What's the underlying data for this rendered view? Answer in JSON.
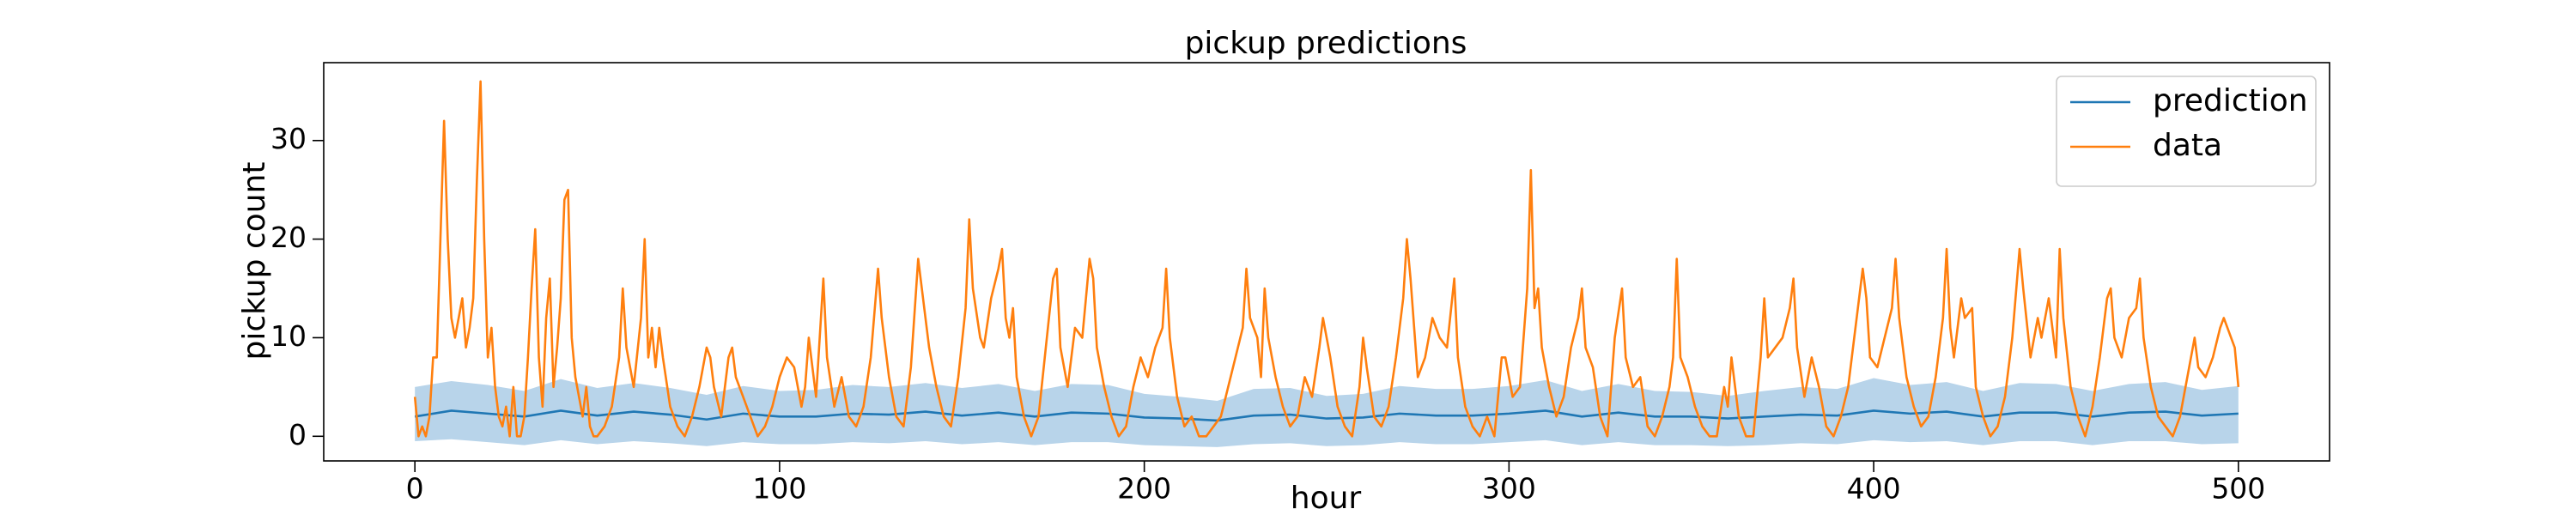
{
  "chart_data": {
    "type": "line",
    "title": "pickup predictions",
    "xlabel": "hour",
    "ylabel": "pickup count",
    "xlim": [
      -25,
      525
    ],
    "ylim": [
      -2.5,
      37.9
    ],
    "xticks": [
      0,
      100,
      200,
      300,
      400,
      500
    ],
    "yticks": [
      0,
      10,
      20,
      30
    ],
    "legend": "upper right",
    "band": {
      "color": "#b8d4ea",
      "x": [
        0,
        10,
        20,
        30,
        40,
        50,
        60,
        70,
        80,
        90,
        100,
        110,
        120,
        130,
        140,
        150,
        160,
        170,
        180,
        190,
        200,
        210,
        220,
        230,
        240,
        250,
        260,
        270,
        280,
        290,
        300,
        310,
        320,
        330,
        340,
        350,
        360,
        370,
        380,
        390,
        400,
        410,
        420,
        430,
        440,
        450,
        460,
        470,
        480,
        490,
        500
      ],
      "lower": [
        -0.5,
        -0.3,
        -0.6,
        -0.9,
        -0.4,
        -0.8,
        -0.5,
        -0.7,
        -1.0,
        -0.6,
        -0.8,
        -0.8,
        -0.6,
        -0.7,
        -0.5,
        -0.8,
        -0.6,
        -0.9,
        -0.6,
        -0.6,
        -0.9,
        -1.0,
        -1.1,
        -0.8,
        -0.7,
        -1.0,
        -0.9,
        -0.6,
        -0.8,
        -0.8,
        -0.6,
        -0.4,
        -0.9,
        -0.6,
        -0.9,
        -0.9,
        -1.0,
        -0.9,
        -0.7,
        -0.8,
        -0.4,
        -0.6,
        -0.5,
        -0.9,
        -0.5,
        -0.5,
        -0.9,
        -0.5,
        -0.5,
        -0.8,
        -0.7
      ],
      "upper": [
        5.0,
        5.6,
        5.2,
        4.6,
        5.8,
        4.9,
        5.4,
        4.9,
        4.2,
        5.1,
        4.6,
        4.7,
        5.2,
        5.0,
        5.4,
        4.9,
        5.3,
        4.6,
        5.3,
        5.2,
        4.3,
        4.0,
        3.6,
        4.8,
        4.9,
        4.1,
        4.3,
        5.1,
        4.8,
        4.8,
        5.1,
        5.7,
        4.6,
        5.3,
        4.6,
        4.5,
        4.1,
        4.6,
        5.0,
        4.8,
        5.9,
        5.2,
        5.5,
        4.6,
        5.4,
        5.3,
        4.6,
        5.3,
        5.5,
        4.7,
        5.1
      ]
    },
    "series": [
      {
        "name": "prediction",
        "color": "#1f77b4",
        "x": [
          0,
          10,
          20,
          30,
          40,
          50,
          60,
          70,
          80,
          90,
          100,
          110,
          120,
          130,
          140,
          150,
          160,
          170,
          180,
          190,
          200,
          210,
          220,
          230,
          240,
          250,
          260,
          270,
          280,
          290,
          300,
          310,
          320,
          330,
          340,
          350,
          360,
          370,
          380,
          390,
          400,
          410,
          420,
          430,
          440,
          450,
          460,
          470,
          480,
          490,
          500
        ],
        "values": [
          2.0,
          2.6,
          2.3,
          2.0,
          2.6,
          2.1,
          2.5,
          2.2,
          1.7,
          2.3,
          2.0,
          2.0,
          2.3,
          2.2,
          2.5,
          2.1,
          2.4,
          2.0,
          2.4,
          2.3,
          1.9,
          1.8,
          1.6,
          2.1,
          2.2,
          1.8,
          1.9,
          2.3,
          2.1,
          2.1,
          2.3,
          2.6,
          2.0,
          2.4,
          2.0,
          2.0,
          1.8,
          2.0,
          2.2,
          2.1,
          2.6,
          2.3,
          2.5,
          2.0,
          2.4,
          2.4,
          2.0,
          2.4,
          2.5,
          2.1,
          2.3
        ]
      },
      {
        "name": "data",
        "color": "#ff7f0e",
        "x": [
          0,
          1,
          2,
          3,
          4,
          5,
          6,
          7,
          8,
          9,
          10,
          11,
          12,
          13,
          14,
          15,
          16,
          17,
          18,
          19,
          20,
          21,
          22,
          23,
          24,
          25,
          26,
          27,
          28,
          29,
          30,
          31,
          32,
          33,
          34,
          35,
          36,
          37,
          38,
          39,
          40,
          41,
          42,
          43,
          44,
          45,
          46,
          47,
          48,
          49,
          50,
          52,
          54,
          56,
          57,
          58,
          60,
          62,
          63,
          64,
          65,
          66,
          67,
          68,
          70,
          72,
          74,
          76,
          78,
          80,
          81,
          82,
          84,
          86,
          87,
          88,
          90,
          92,
          94,
          96,
          98,
          100,
          102,
          104,
          106,
          107,
          108,
          110,
          112,
          113,
          115,
          117,
          119,
          121,
          123,
          125,
          127,
          128,
          130,
          132,
          134,
          136,
          138,
          139,
          141,
          143,
          145,
          147,
          149,
          151,
          152,
          153,
          155,
          156,
          158,
          160,
          161,
          162,
          163,
          164,
          165,
          167,
          169,
          171,
          173,
          175,
          176,
          177,
          179,
          181,
          183,
          185,
          186,
          187,
          189,
          191,
          193,
          195,
          197,
          199,
          201,
          203,
          205,
          206,
          207,
          209,
          211,
          213,
          215,
          217,
          219,
          221,
          223,
          225,
          227,
          228,
          229,
          231,
          232,
          233,
          234,
          236,
          238,
          240,
          242,
          244,
          246,
          248,
          249,
          251,
          253,
          255,
          257,
          259,
          260,
          261,
          263,
          265,
          267,
          269,
          271,
          272,
          273,
          275,
          277,
          279,
          281,
          283,
          285,
          286,
          288,
          290,
          292,
          294,
          296,
          298,
          299,
          301,
          303,
          305,
          306,
          307,
          308,
          309,
          311,
          313,
          315,
          317,
          319,
          320,
          321,
          323,
          325,
          327,
          329,
          331,
          332,
          334,
          336,
          338,
          340,
          342,
          344,
          345,
          346,
          347,
          349,
          351,
          353,
          355,
          357,
          359,
          360,
          361,
          363,
          365,
          367,
          369,
          370,
          371,
          373,
          375,
          377,
          378,
          379,
          381,
          383,
          385,
          387,
          389,
          391,
          393,
          395,
          397,
          398,
          399,
          401,
          403,
          405,
          406,
          407,
          409,
          411,
          413,
          415,
          417,
          419,
          420,
          421,
          422,
          424,
          425,
          427,
          428,
          430,
          432,
          434,
          436,
          438,
          440,
          441,
          443,
          445,
          446,
          448,
          450,
          451,
          452,
          454,
          456,
          458,
          460,
          462,
          464,
          465,
          466,
          468,
          470,
          472,
          473,
          474,
          476,
          478,
          480,
          482,
          484,
          486,
          488,
          489,
          491,
          493,
          495,
          496,
          497,
          499,
          500
        ],
        "values": [
          4,
          0,
          1,
          0,
          2,
          8,
          8,
          20,
          32,
          20,
          12,
          10,
          12,
          14,
          9,
          11,
          14,
          26,
          36,
          20,
          8,
          11,
          5,
          2,
          1,
          3,
          0,
          5,
          0,
          0,
          2,
          8,
          15,
          21,
          8,
          3,
          12,
          16,
          5,
          9,
          14,
          24,
          25,
          10,
          6,
          4,
          2,
          5,
          1,
          0,
          0,
          1,
          3,
          8,
          15,
          9,
          5,
          12,
          20,
          8,
          11,
          7,
          11,
          8,
          3,
          1,
          0,
          2,
          5,
          9,
          8,
          5,
          2,
          8,
          9,
          6,
          4,
          2,
          0,
          1,
          3,
          6,
          8,
          7,
          3,
          5,
          10,
          4,
          16,
          8,
          3,
          6,
          2,
          1,
          3,
          8,
          17,
          12,
          6,
          2,
          1,
          7,
          18,
          15,
          9,
          5,
          2,
          1,
          6,
          13,
          22,
          15,
          10,
          9,
          14,
          17,
          19,
          12,
          10,
          13,
          6,
          2,
          0,
          2,
          9,
          16,
          17,
          9,
          5,
          11,
          10,
          18,
          16,
          9,
          5,
          2,
          0,
          1,
          5,
          8,
          6,
          9,
          11,
          17,
          10,
          4,
          1,
          2,
          0,
          0,
          1,
          2,
          5,
          8,
          11,
          17,
          12,
          10,
          6,
          15,
          10,
          6,
          3,
          1,
          2,
          6,
          4,
          9,
          12,
          8,
          3,
          1,
          0,
          5,
          10,
          7,
          2,
          1,
          3,
          8,
          14,
          20,
          16,
          6,
          8,
          12,
          10,
          9,
          16,
          8,
          3,
          1,
          0,
          2,
          0,
          8,
          8,
          4,
          5,
          15,
          27,
          13,
          15,
          9,
          5,
          2,
          4,
          9,
          12,
          15,
          9,
          7,
          2,
          0,
          10,
          15,
          8,
          5,
          6,
          1,
          0,
          2,
          5,
          8,
          18,
          8,
          6,
          3,
          1,
          0,
          0,
          5,
          3,
          8,
          2,
          0,
          0,
          8,
          14,
          8,
          9,
          10,
          13,
          16,
          9,
          4,
          8,
          5,
          1,
          0,
          2,
          5,
          11,
          17,
          14,
          8,
          7,
          10,
          13,
          18,
          12,
          6,
          3,
          1,
          2,
          6,
          12,
          19,
          11,
          8,
          14,
          12,
          13,
          5,
          2,
          0,
          1,
          4,
          10,
          19,
          15,
          8,
          12,
          10,
          14,
          8,
          19,
          12,
          5,
          2,
          0,
          3,
          8,
          14,
          15,
          10,
          8,
          12,
          13,
          16,
          10,
          5,
          2,
          1,
          0,
          2,
          6,
          10,
          7,
          6,
          8,
          11,
          12,
          11,
          9,
          5
        ]
      }
    ]
  }
}
